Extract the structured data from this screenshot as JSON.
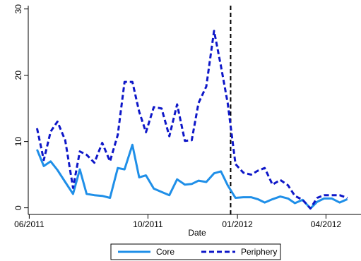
{
  "chart_data": {
    "type": "line",
    "xlabel": "Date",
    "ylabel": "",
    "x_ticks": [
      "06/2011",
      "10/2011",
      "01/2012",
      "04/2012"
    ],
    "y_ticks": [
      0,
      10,
      20,
      30
    ],
    "xlim": [
      "2011-05-31",
      "2012-05-07"
    ],
    "ylim": [
      -1,
      30.5
    ],
    "grid": false,
    "legend_position": "bottom",
    "vline": {
      "x": "2011-12-25",
      "style": "dashed",
      "color": "#000000"
    },
    "series": [
      {
        "name": "Core",
        "color": "#1f8fe8",
        "style": "solid",
        "points": [
          [
            "2011-06-09",
            8.8
          ],
          [
            "2011-06-16",
            6.3
          ],
          [
            "2011-06-23",
            7.0
          ],
          [
            "2011-06-30",
            5.7
          ],
          [
            "2011-07-08",
            3.9
          ],
          [
            "2011-07-16",
            2.1
          ],
          [
            "2011-07-23",
            5.8
          ],
          [
            "2011-07-30",
            2.1
          ],
          [
            "2011-08-07",
            1.9
          ],
          [
            "2011-08-15",
            1.8
          ],
          [
            "2011-08-23",
            1.5
          ],
          [
            "2011-08-31",
            6.0
          ],
          [
            "2011-09-07",
            5.8
          ],
          [
            "2011-09-15",
            9.5
          ],
          [
            "2011-09-22",
            4.6
          ],
          [
            "2011-09-29",
            4.9
          ],
          [
            "2011-10-07",
            2.9
          ],
          [
            "2011-10-15",
            2.4
          ],
          [
            "2011-10-23",
            1.9
          ],
          [
            "2011-10-31",
            4.3
          ],
          [
            "2011-11-08",
            3.5
          ],
          [
            "2011-11-15",
            3.6
          ],
          [
            "2011-11-22",
            4.1
          ],
          [
            "2011-11-30",
            3.9
          ],
          [
            "2011-12-08",
            5.2
          ],
          [
            "2011-12-15",
            5.5
          ],
          [
            "2011-12-22",
            3.4
          ],
          [
            "2011-12-30",
            1.5
          ],
          [
            "2012-01-07",
            1.6
          ],
          [
            "2012-01-15",
            1.6
          ],
          [
            "2012-01-22",
            1.3
          ],
          [
            "2012-01-29",
            0.8
          ],
          [
            "2012-02-06",
            1.3
          ],
          [
            "2012-02-14",
            1.7
          ],
          [
            "2012-02-22",
            1.4
          ],
          [
            "2012-02-29",
            0.7
          ],
          [
            "2012-03-08",
            1.2
          ],
          [
            "2012-03-16",
            -0.1
          ],
          [
            "2012-03-23",
            0.9
          ],
          [
            "2012-03-30",
            1.4
          ],
          [
            "2012-04-07",
            1.4
          ],
          [
            "2012-04-15",
            0.8
          ],
          [
            "2012-04-23",
            1.3
          ]
        ]
      },
      {
        "name": "Periphery",
        "color": "#0e17c8",
        "style": "dashed",
        "points": [
          [
            "2011-06-09",
            12.0
          ],
          [
            "2011-06-16",
            7.2
          ],
          [
            "2011-06-23",
            11.5
          ],
          [
            "2011-06-30",
            13.0
          ],
          [
            "2011-07-08",
            10.2
          ],
          [
            "2011-07-16",
            3.0
          ],
          [
            "2011-07-23",
            8.5
          ],
          [
            "2011-07-30",
            8.0
          ],
          [
            "2011-08-07",
            6.8
          ],
          [
            "2011-08-15",
            9.8
          ],
          [
            "2011-08-23",
            7.0
          ],
          [
            "2011-08-31",
            11.0
          ],
          [
            "2011-09-07",
            19.0
          ],
          [
            "2011-09-15",
            19.0
          ],
          [
            "2011-09-22",
            14.5
          ],
          [
            "2011-09-29",
            11.4
          ],
          [
            "2011-10-07",
            15.2
          ],
          [
            "2011-10-15",
            15.0
          ],
          [
            "2011-10-23",
            10.8
          ],
          [
            "2011-10-31",
            15.6
          ],
          [
            "2011-11-08",
            10.1
          ],
          [
            "2011-11-15",
            10.2
          ],
          [
            "2011-11-22",
            15.8
          ],
          [
            "2011-11-30",
            18.3
          ],
          [
            "2011-12-08",
            26.7
          ],
          [
            "2011-12-15",
            21.4
          ],
          [
            "2011-12-22",
            15.8
          ],
          [
            "2011-12-30",
            6.6
          ],
          [
            "2012-01-07",
            5.3
          ],
          [
            "2012-01-15",
            5.0
          ],
          [
            "2012-01-22",
            5.6
          ],
          [
            "2012-01-29",
            6.0
          ],
          [
            "2012-02-06",
            3.5
          ],
          [
            "2012-02-14",
            4.2
          ],
          [
            "2012-02-22",
            3.4
          ],
          [
            "2012-02-29",
            1.8
          ],
          [
            "2012-03-08",
            1.2
          ],
          [
            "2012-03-16",
            -0.1
          ],
          [
            "2012-03-23",
            1.5
          ],
          [
            "2012-03-30",
            1.9
          ],
          [
            "2012-04-07",
            1.9
          ],
          [
            "2012-04-15",
            1.9
          ],
          [
            "2012-04-23",
            1.5
          ]
        ]
      }
    ]
  }
}
